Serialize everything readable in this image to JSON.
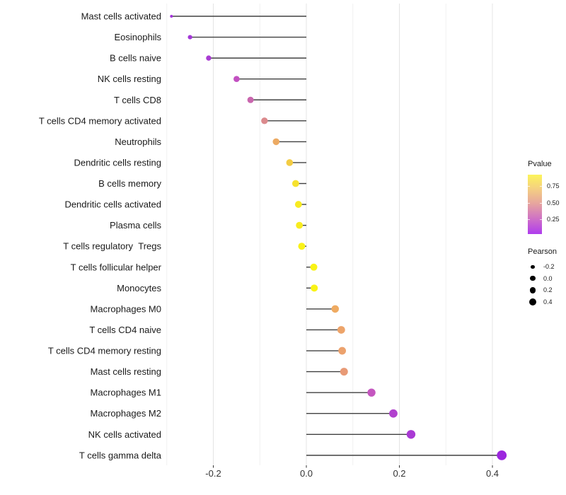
{
  "chart_data": {
    "type": "lollipop",
    "title": "",
    "xlabel": "",
    "ylabel": "",
    "xlim": [
      -0.305,
      0.455
    ],
    "x_ticks": [
      {
        "value": -0.2,
        "label": "-0.2"
      },
      {
        "value": 0.0,
        "label": "0.0"
      },
      {
        "value": 0.2,
        "label": "0.2"
      },
      {
        "value": 0.4,
        "label": "0.4"
      }
    ],
    "minor_grid_values": [
      -0.3,
      -0.1,
      0.1,
      0.3
    ],
    "grid": true,
    "stem_color": "#404040",
    "grid_major_color": "#e4e4e4",
    "grid_minor_color": "#f1f1f1",
    "tick_mark_color": "#333333",
    "points": [
      {
        "label": "Mast cells activated",
        "pearson": -0.29,
        "color": "#A333D9",
        "r": 2.0
      },
      {
        "label": "Eosinophils",
        "pearson": -0.25,
        "color": "#A336D7",
        "r": 3.1
      },
      {
        "label": "B cells naive",
        "pearson": -0.21,
        "color": "#A93CD3",
        "r": 3.7
      },
      {
        "label": "NK cells resting",
        "pearson": -0.15,
        "color": "#C250C1",
        "r": 4.3
      },
      {
        "label": "T cells CD8",
        "pearson": -0.12,
        "color": "#C966AE",
        "r": 4.5
      },
      {
        "label": "T cells CD4 memory activated",
        "pearson": -0.09,
        "color": "#DB8A8D",
        "r": 4.7
      },
      {
        "label": "Neutrophils",
        "pearson": -0.065,
        "color": "#ECAA63",
        "r": 4.8
      },
      {
        "label": "Dendritic cells resting",
        "pearson": -0.036,
        "color": "#F3CC43",
        "r": 4.8
      },
      {
        "label": "B cells memory",
        "pearson": -0.023,
        "color": "#F6E22E",
        "r": 4.9
      },
      {
        "label": "Dendritic cells activated",
        "pearson": -0.017,
        "color": "#F8EB20",
        "r": 4.9
      },
      {
        "label": "Plasma cells",
        "pearson": -0.015,
        "color": "#F8EC1F",
        "r": 4.9
      },
      {
        "label": "T cells regulatory  Tregs",
        "pearson": -0.01,
        "color": "#F9F218",
        "r": 5.0
      },
      {
        "label": "T cells follicular helper",
        "pearson": 0.016,
        "color": "#F9F316",
        "r": 5.0
      },
      {
        "label": "Monocytes",
        "pearson": 0.017,
        "color": "#F9F316",
        "r": 5.0
      },
      {
        "label": "Macrophages M0",
        "pearson": 0.062,
        "color": "#EFAB62",
        "r": 5.3
      },
      {
        "label": "T cells CD4 naive",
        "pearson": 0.075,
        "color": "#EDA46A",
        "r": 5.4
      },
      {
        "label": "T cells CD4 memory resting",
        "pearson": 0.077,
        "color": "#ECA26D",
        "r": 5.4
      },
      {
        "label": "Mast cells resting",
        "pearson": 0.081,
        "color": "#E89A76",
        "r": 5.5
      },
      {
        "label": "Macrophages M1",
        "pearson": 0.14,
        "color": "#C456BF",
        "r": 5.7
      },
      {
        "label": "Macrophages M2",
        "pearson": 0.187,
        "color": "#B141CE",
        "r": 5.9
      },
      {
        "label": "NK cells activated",
        "pearson": 0.225,
        "color": "#A93AD4",
        "r": 6.2
      },
      {
        "label": "T cells gamma delta",
        "pearson": 0.42,
        "color": "#9C27DE",
        "r": 6.9
      }
    ]
  },
  "legend_pvalue": {
    "title": "Pvalue",
    "ticks": [
      "0.75",
      "0.50",
      "0.25"
    ],
    "gradient_stops": [
      "#FCF45A",
      "#F5D27F",
      "#E7A69E",
      "#CE6FC7",
      "#AF3CEE"
    ]
  },
  "legend_pearson": {
    "title": "Pearson",
    "dot_color": "#000000",
    "items": [
      {
        "label": "-0.2",
        "r": 2.7
      },
      {
        "label": "0.0",
        "r": 3.7
      },
      {
        "label": "0.2",
        "r": 4.4
      },
      {
        "label": "0.4",
        "r": 5.0
      }
    ]
  }
}
